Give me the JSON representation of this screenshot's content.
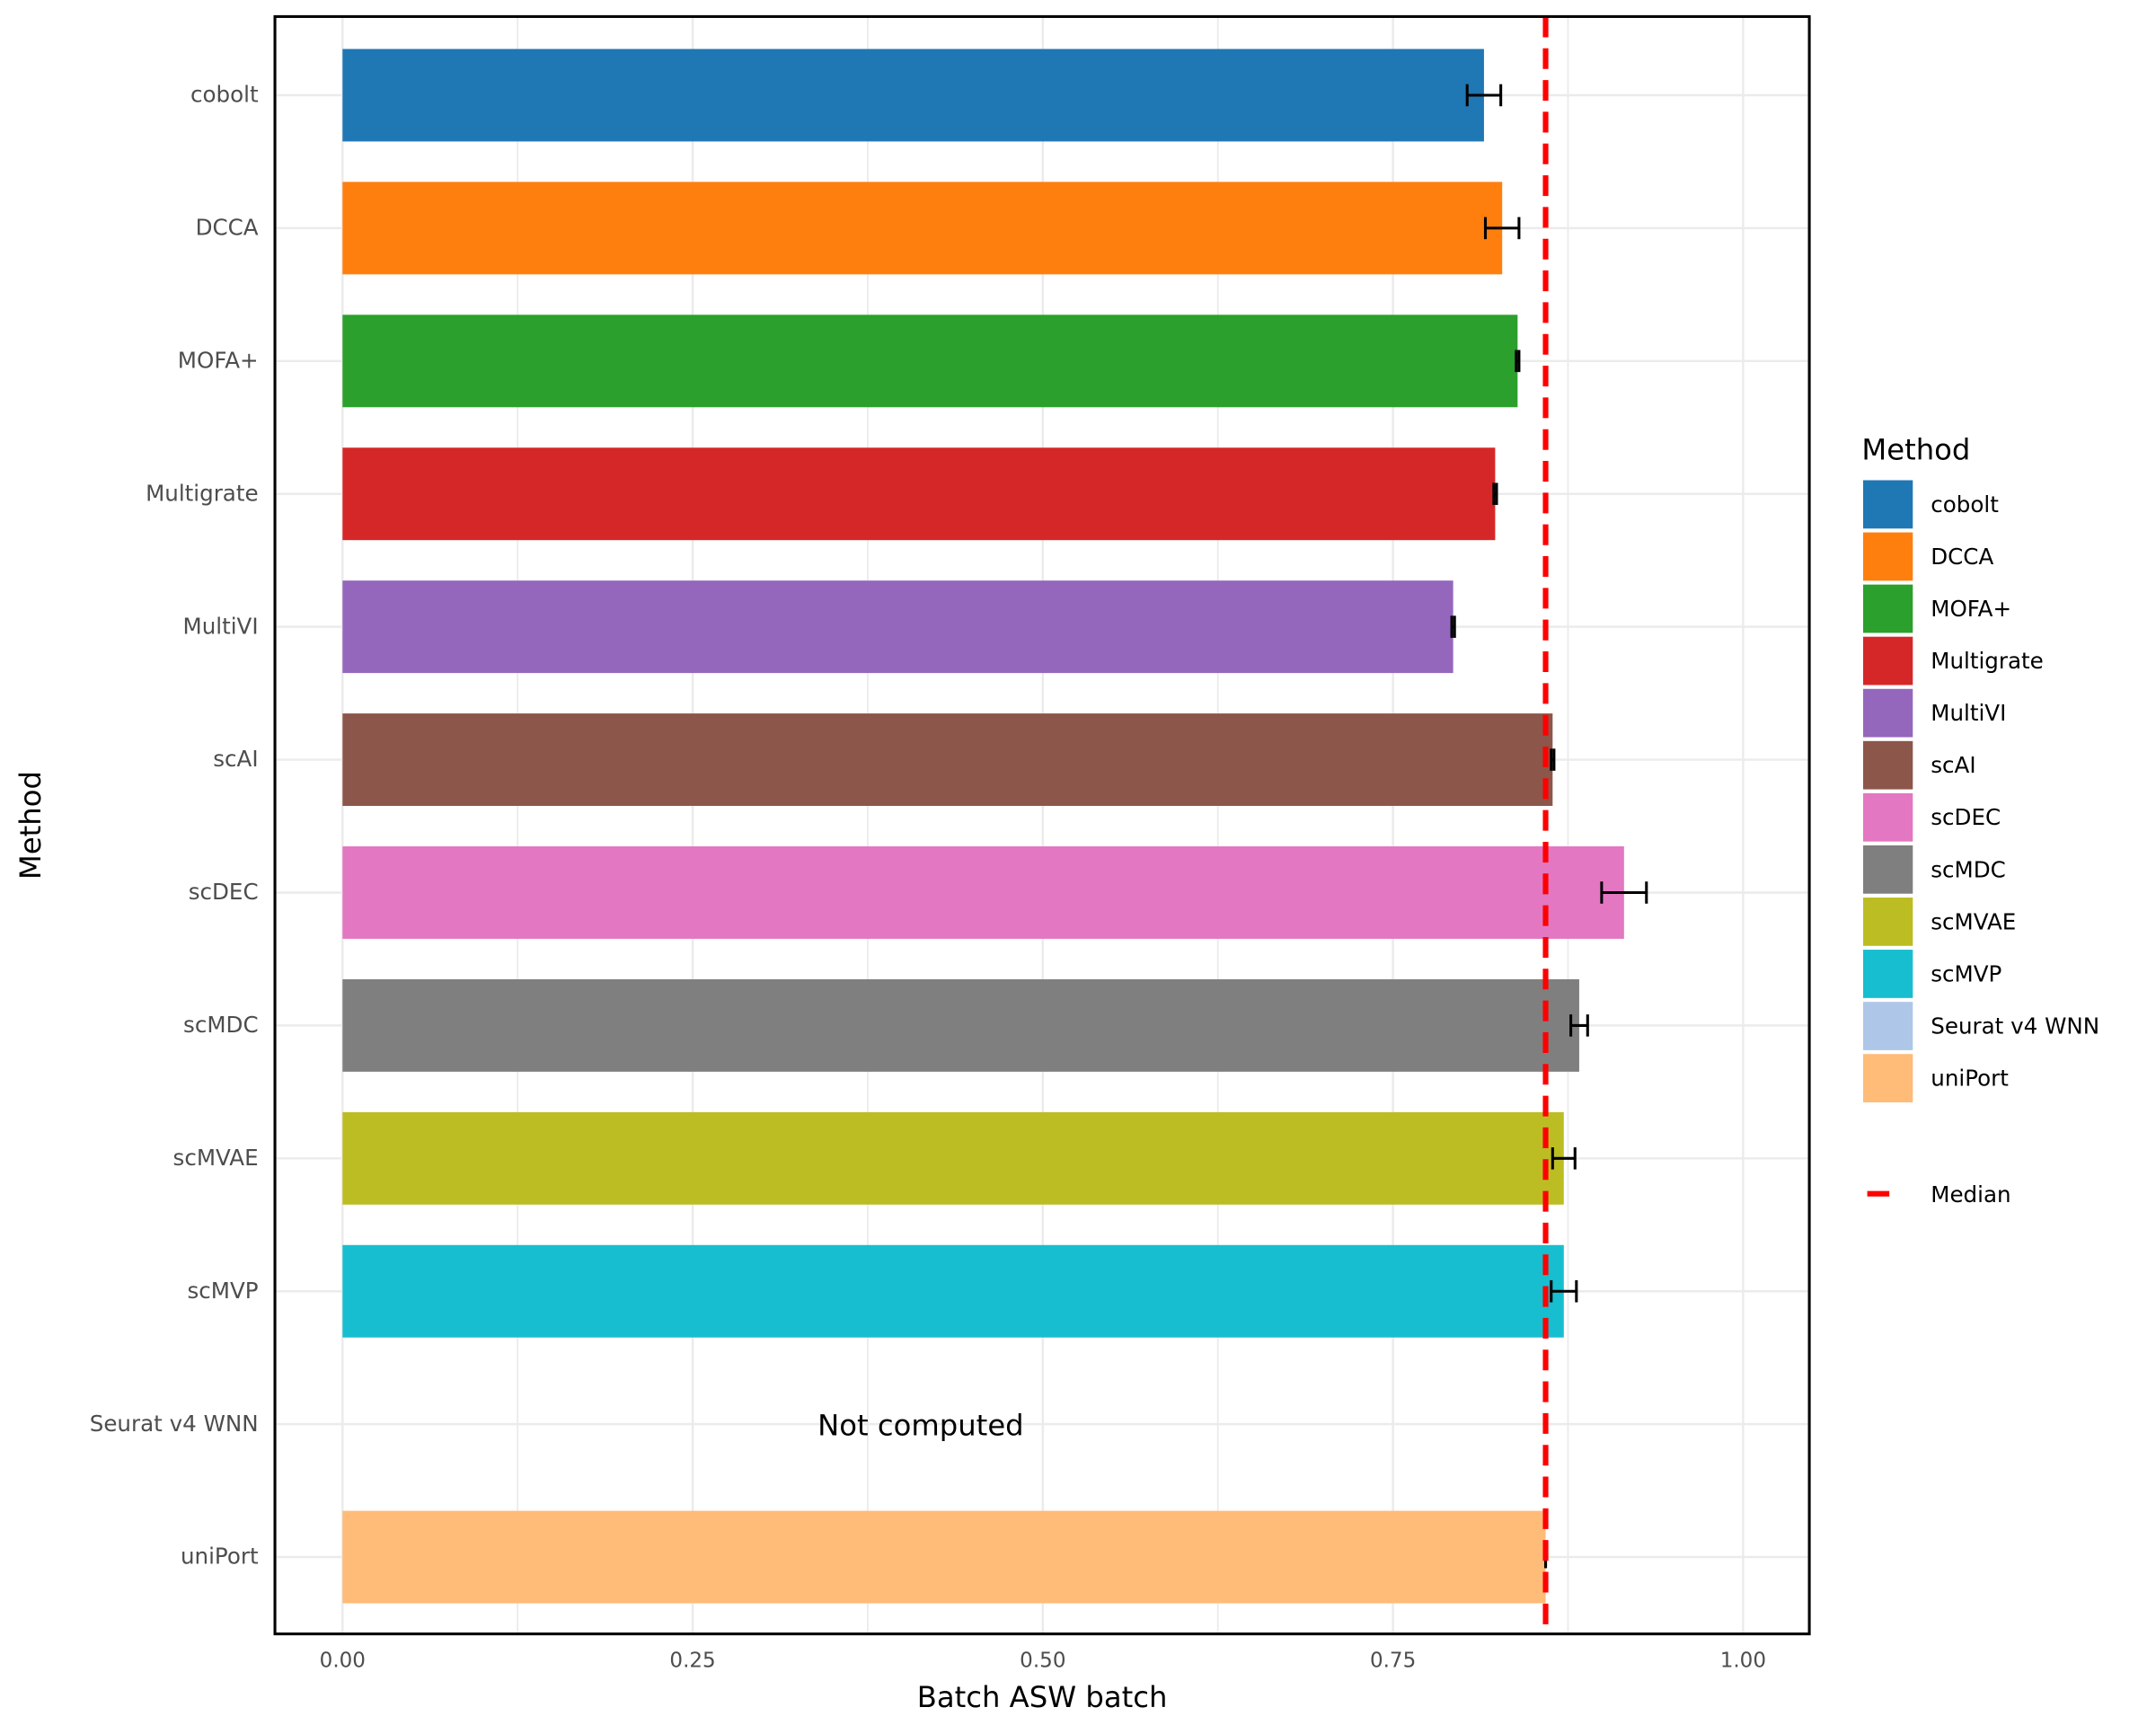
{
  "chart_data": {
    "type": "bar",
    "orientation": "horizontal",
    "xlabel": "Batch ASW batch",
    "ylabel": "Method",
    "xlim": [
      -0.05,
      1.05
    ],
    "xticks": [
      0,
      0.25,
      0.5,
      0.75,
      1.0
    ],
    "xtick_labels": [
      "0.00",
      "0.25",
      "0.50",
      "0.75",
      "1.00"
    ],
    "grid": true,
    "categories": [
      "cobolt",
      "DCCA",
      "MOFA+",
      "Multigrate",
      "MultiVI",
      "scAI",
      "scDEC",
      "scMDC",
      "scMVAE",
      "scMVP",
      "Seurat v4 WNN",
      "uniPort"
    ],
    "values": [
      0.815,
      0.828,
      0.839,
      0.823,
      0.793,
      0.864,
      0.915,
      0.883,
      0.872,
      0.872,
      null,
      0.859
    ],
    "errors": [
      0.012,
      0.012,
      0.001,
      0.001,
      0.001,
      0.001,
      0.016,
      0.006,
      0.008,
      0.009,
      null,
      0.0
    ],
    "colors": [
      "#1f77b4",
      "#ff7f0e",
      "#2ca02c",
      "#d62728",
      "#9467bd",
      "#8c564b",
      "#e377c2",
      "#7f7f7f",
      "#bcbd22",
      "#17becf",
      "#aec7e8",
      "#ffbb78"
    ],
    "median": 0.859,
    "median_label": "Median",
    "median_color": "#ff0000",
    "annotation": "Not computed",
    "legend": {
      "title": "Method",
      "placement": "right"
    }
  }
}
